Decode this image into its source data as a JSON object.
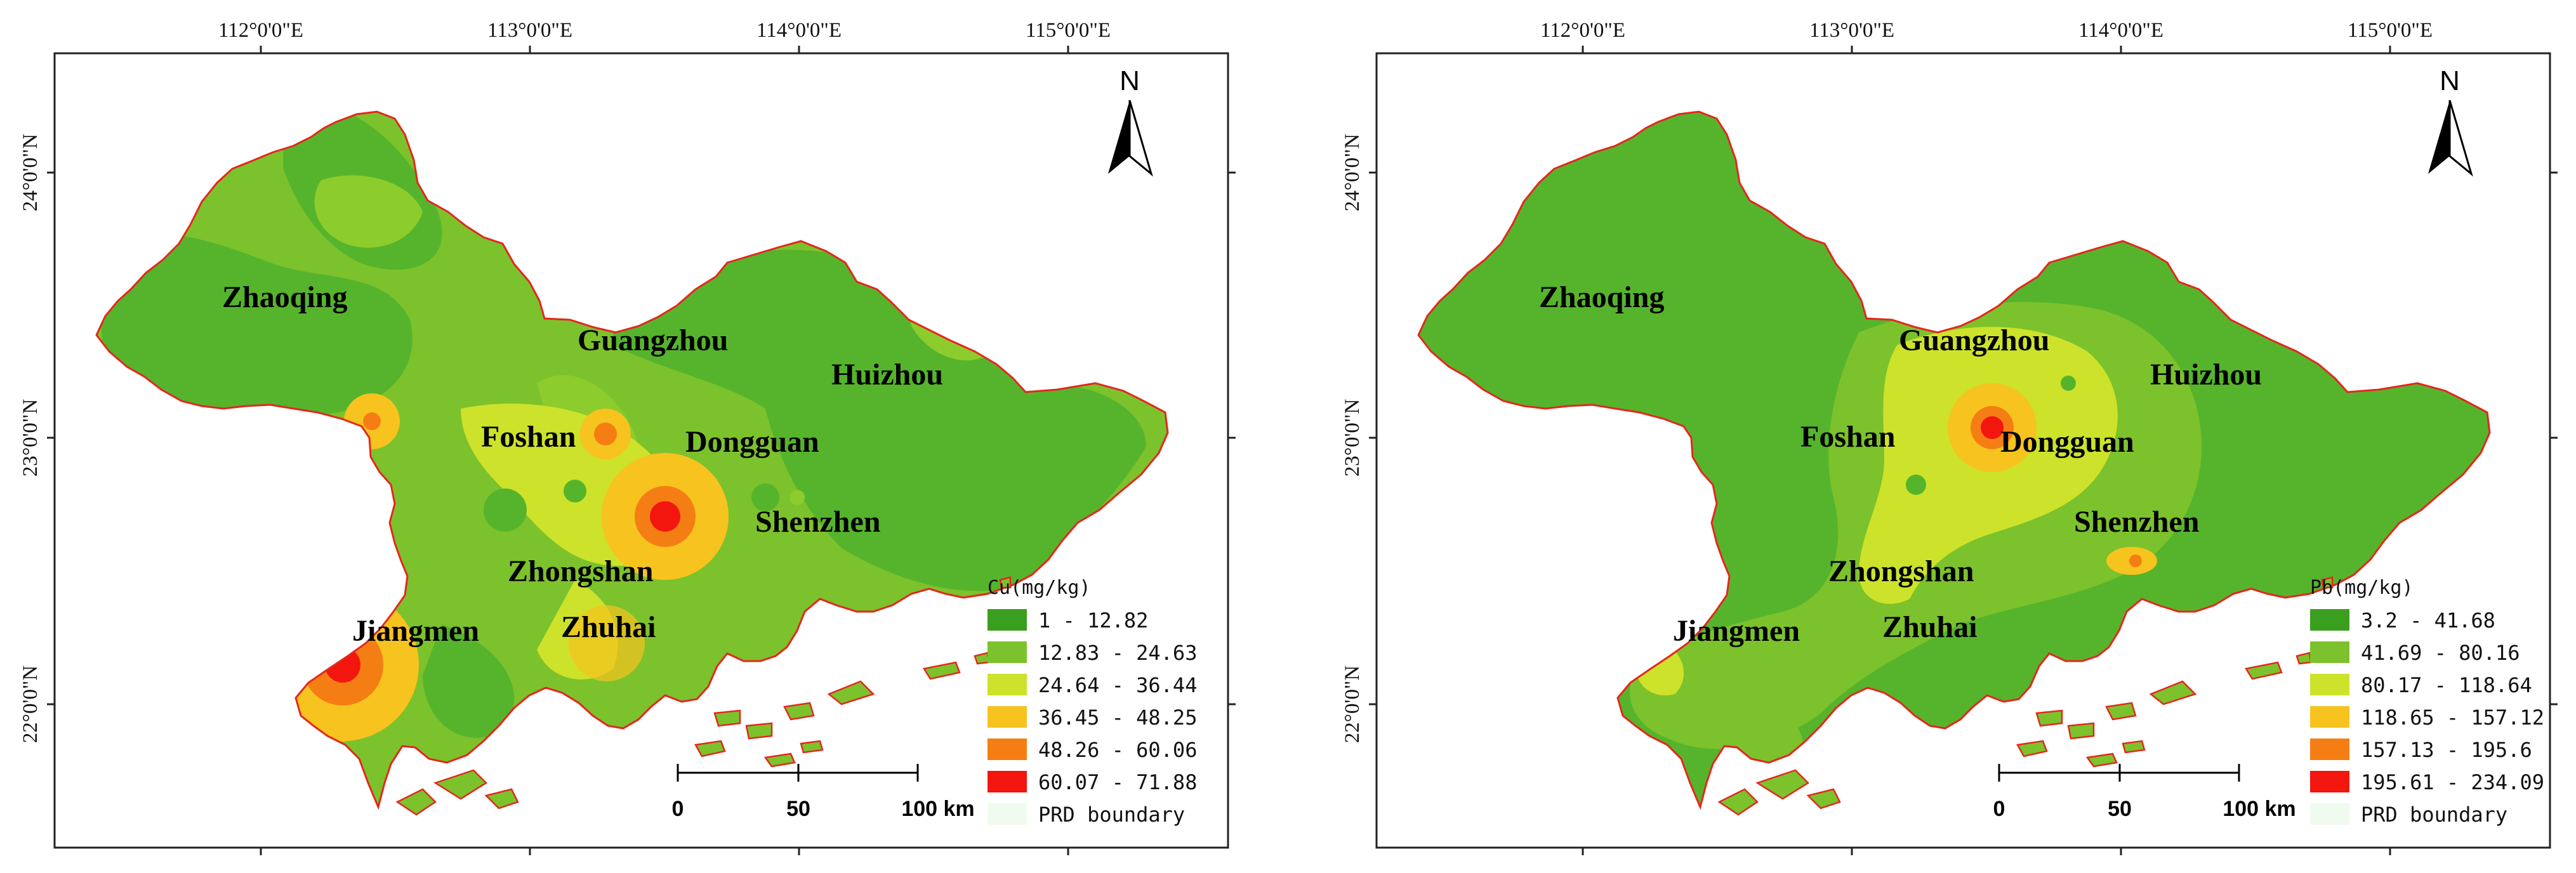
{
  "panels": [
    {
      "id": "cu",
      "lon_labels": [
        "112°0'0\"E",
        "113°0'0\"E",
        "114°0'0\"E",
        "115°0'0\"E"
      ],
      "lat_labels": [
        "24°0'0\"N",
        "23°0'0\"N",
        "22°0'0\"N"
      ],
      "north_label": "N",
      "cities": [
        "Zhaoqing",
        "Guangzhou",
        "Huizhou",
        "Foshan",
        "Dongguan",
        "Shenzhen",
        "Zhongshan",
        "Jiangmen",
        "Zhuhai"
      ],
      "legend": {
        "title": "Cu(mg/kg)",
        "classes": [
          {
            "label": "1 - 12.82",
            "color": "#3a9e1e"
          },
          {
            "label": "12.83 - 24.63",
            "color": "#7cc22c"
          },
          {
            "label": "24.64 - 36.44",
            "color": "#cde22a"
          },
          {
            "label": "36.45 - 48.25",
            "color": "#f7c31e"
          },
          {
            "label": "48.26 - 60.06",
            "color": "#f57e14"
          },
          {
            "label": "60.07 - 71.88",
            "color": "#f2160f"
          }
        ],
        "boundary_label": "PRD boundary",
        "boundary_color": "#f0fbf0"
      },
      "scale_labels": [
        "0",
        "50",
        "100 km"
      ]
    },
    {
      "id": "pb",
      "lon_labels": [
        "112°0'0\"E",
        "113°0'0\"E",
        "114°0'0\"E",
        "115°0'0\"E"
      ],
      "lat_labels": [
        "24°0'0\"N",
        "23°0'0\"N",
        "22°0'0\"N"
      ],
      "north_label": "N",
      "cities": [
        "Zhaoqing",
        "Guangzhou",
        "Huizhou",
        "Foshan",
        "Dongguan",
        "Shenzhen",
        "Zhongshan",
        "Jiangmen",
        "Zhuhai"
      ],
      "legend": {
        "title": "Pb(mg/kg)",
        "classes": [
          {
            "label": "3.2 - 41.68",
            "color": "#3a9e1e"
          },
          {
            "label": "41.69 - 80.16",
            "color": "#7cc22c"
          },
          {
            "label": "80.17 - 118.64",
            "color": "#cde22a"
          },
          {
            "label": "118.65 - 157.12",
            "color": "#f7c31e"
          },
          {
            "label": "157.13 - 195.6",
            "color": "#f57e14"
          },
          {
            "label": "195.61 - 234.09",
            "color": "#f2160f"
          }
        ],
        "boundary_label": "PRD boundary",
        "boundary_color": "#f0fbf0"
      },
      "scale_labels": [
        "0",
        "50",
        "100 km"
      ]
    }
  ],
  "colors": {
    "base_dark": "#56b42c",
    "mid_green": "#7cc22c",
    "yellow_green": "#cde22a",
    "yellow": "#f7c31e",
    "orange": "#f57e14",
    "red": "#f2160f",
    "coast": "#e4271d"
  }
}
